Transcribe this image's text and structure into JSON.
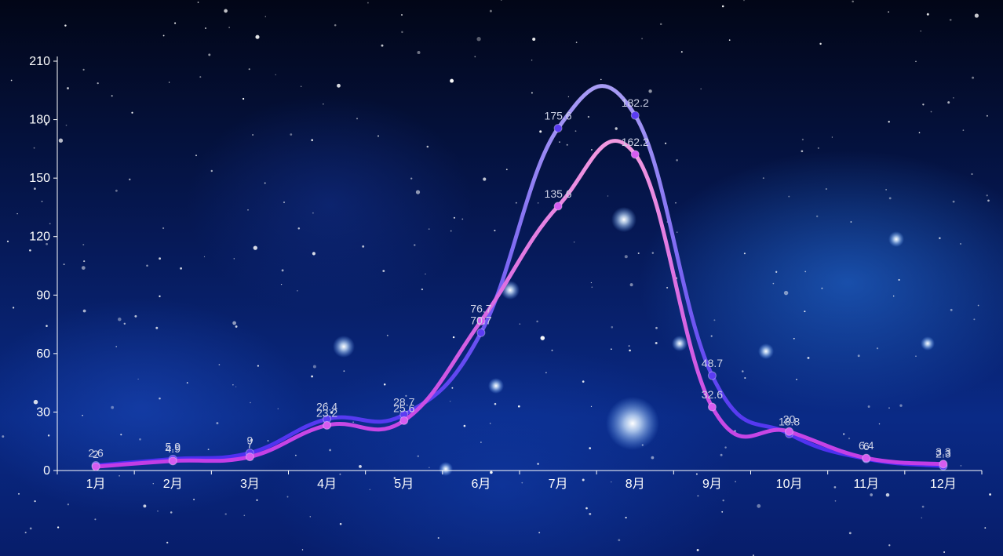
{
  "chart_data": {
    "type": "line",
    "categories": [
      "1月",
      "2月",
      "3月",
      "4月",
      "5月",
      "6月",
      "7月",
      "8月",
      "9月",
      "10月",
      "11月",
      "12月"
    ],
    "series": [
      {
        "values": [
          2.6,
          5.9,
          9,
          26.4,
          28.7,
          70.7,
          175.6,
          182.2,
          48.7,
          18.8,
          6,
          2.3
        ],
        "color_start": "#4b2cf0",
        "color_end": "#a89cf5",
        "marker_color": "#5b3cf2"
      },
      {
        "values": [
          2,
          4.9,
          7,
          23.2,
          25.6,
          76.7,
          135.6,
          162.2,
          32.6,
          20,
          6.4,
          3.3
        ],
        "color_start": "#c23ce6",
        "color_end": "#f29ae0",
        "marker_color": "#d65cf0"
      }
    ],
    "ylim": [
      0,
      210
    ],
    "yticks": [
      0,
      30,
      60,
      90,
      120,
      150,
      180,
      210
    ],
    "grid": false,
    "legend": "none",
    "axis_color": "#ffffff",
    "label_color": "#cfd3e6"
  }
}
